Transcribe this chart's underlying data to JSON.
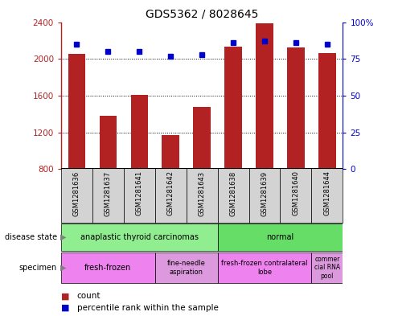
{
  "title": "GDS5362 / 8028645",
  "samples": [
    "GSM1281636",
    "GSM1281637",
    "GSM1281641",
    "GSM1281642",
    "GSM1281643",
    "GSM1281638",
    "GSM1281639",
    "GSM1281640",
    "GSM1281644"
  ],
  "counts": [
    2050,
    1380,
    1610,
    1170,
    1480,
    2130,
    2390,
    2120,
    2060
  ],
  "percentile_ranks": [
    85,
    80,
    80,
    77,
    78,
    86,
    87,
    86,
    85
  ],
  "y_min": 800,
  "y_max": 2400,
  "y_ticks": [
    800,
    1200,
    1600,
    2000,
    2400
  ],
  "y2_ticks": [
    0,
    25,
    50,
    75,
    100
  ],
  "bar_color": "#B22222",
  "dot_color": "#0000CC",
  "grid_color": "#000000",
  "background_color": "#ffffff",
  "disease_state_colors": [
    "#90EE90",
    "#66DD66"
  ],
  "specimen_colors": [
    "#EE82EE",
    "#DD99DD",
    "#EE82EE",
    "#DD99DD"
  ],
  "legend_count_color": "#B22222",
  "legend_dot_color": "#0000CC"
}
